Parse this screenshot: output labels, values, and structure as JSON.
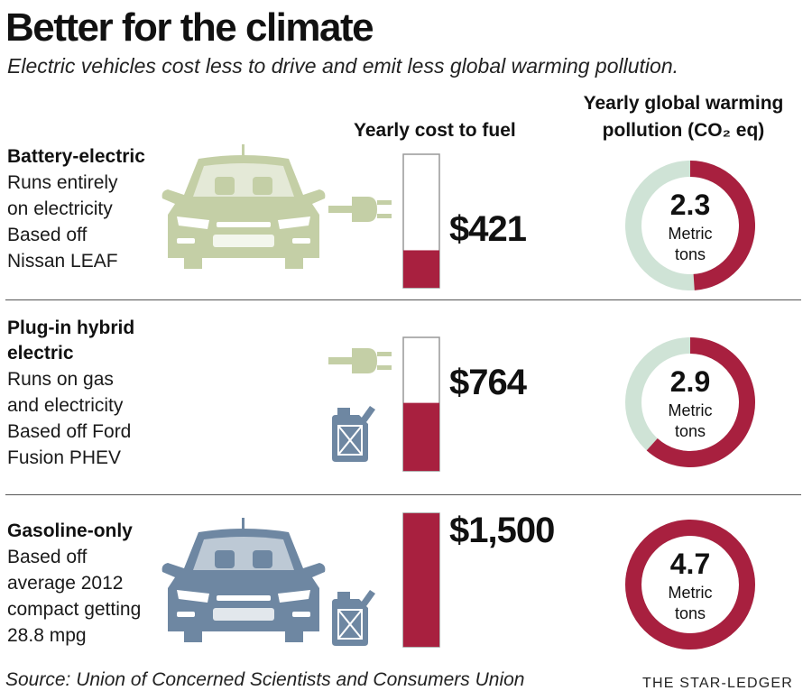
{
  "title": "Better for the climate",
  "subtitle": "Electric vehicles cost less to drive and emit less global warming pollution.",
  "columns": {
    "cost_header": "Yearly cost to fuel",
    "co2_header_line1": "Yearly global warming",
    "co2_header_line2": "pollution (CO₂ eq)"
  },
  "vehicles": [
    {
      "name_lines": [
        "Battery-electric"
      ],
      "description_lines": [
        "Runs entirely",
        "on electricity",
        "Based off",
        "Nissan LEAF"
      ],
      "cost_label": "$421",
      "co2_value": "2.3",
      "co2_unit_lines": [
        "Metric",
        "tons"
      ],
      "icons": [
        "car-icon",
        "plug-icon"
      ]
    },
    {
      "name_lines": [
        "Plug-in hybrid",
        "electric"
      ],
      "description_lines": [
        "Runs on gas",
        "and electricity",
        "Based off Ford",
        "Fusion PHEV"
      ],
      "cost_label": "$764",
      "co2_value": "2.9",
      "co2_unit_lines": [
        "Metric",
        "tons"
      ],
      "icons": [
        "car-icon",
        "plug-icon",
        "gas-can-icon"
      ]
    },
    {
      "name_lines": [
        "Gasoline-only"
      ],
      "description_lines": [
        "Based off",
        "average 2012",
        "compact getting",
        "28.8 mpg"
      ],
      "cost_label": "$1,500",
      "co2_value": "4.7",
      "co2_unit_lines": [
        "Metric",
        "tons"
      ],
      "icons": [
        "car-icon",
        "gas-can-icon"
      ]
    }
  ],
  "source": "Source: Union of Concerned Scientists and Consumers Union",
  "brand": "THE STAR-LEDGER",
  "colors": {
    "accent": "#a8203f",
    "track": "#cfe3d6",
    "electric_green": "#c4cfa6",
    "gas_blue": "#6e87a2"
  },
  "chart_data": [
    {
      "type": "bar",
      "title": "Yearly cost to fuel",
      "categories": [
        "Battery-electric",
        "Plug-in hybrid electric",
        "Gasoline-only"
      ],
      "values": [
        421,
        764,
        1500
      ],
      "ylim": [
        0,
        1500
      ]
    },
    {
      "type": "pie",
      "title": "Yearly global warming pollution (CO₂ eq)",
      "categories": [
        "Battery-electric",
        "Plug-in hybrid electric",
        "Gasoline-only"
      ],
      "values": [
        2.3,
        2.9,
        4.7
      ],
      "max": 4.7
    }
  ]
}
